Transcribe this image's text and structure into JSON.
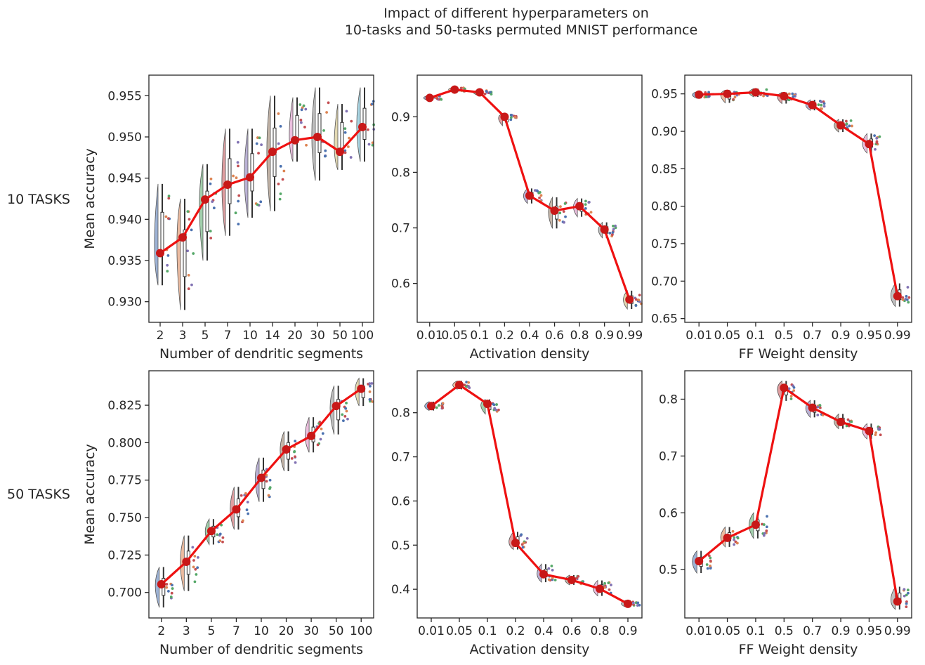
{
  "title_lines": [
    "Impact of different hyperparameters on",
    "10-tasks and 50-tasks permuted MNIST performance"
  ],
  "row_labels": [
    "10 TASKS",
    "50 TASKS"
  ],
  "colors": {
    "line": "#ee1111",
    "marker": "#c81818",
    "palette": [
      "#4c72b0",
      "#dd8452",
      "#55a868",
      "#c44e52",
      "#8172b3",
      "#937860",
      "#da8bc3",
      "#8c8c8c",
      "#ccb974",
      "#64b5cd"
    ]
  },
  "chart_data": [
    {
      "type": "line",
      "row_label": "10 TASKS",
      "xlabel": "Number of dendritic segments",
      "ylabel": "Mean accuracy",
      "categories": [
        "2",
        "3",
        "5",
        "7",
        "10",
        "14",
        "20",
        "30",
        "50",
        "100"
      ],
      "values": [
        0.9359,
        0.9378,
        0.9424,
        0.9442,
        0.9451,
        0.9482,
        0.9496,
        0.95,
        0.9482,
        0.9512
      ],
      "spread_min": [
        0.932,
        0.929,
        0.935,
        0.938,
        0.9402,
        0.941,
        0.947,
        0.9447,
        0.946,
        0.947
      ],
      "spread_max": [
        0.9443,
        0.9425,
        0.9467,
        0.951,
        0.951,
        0.955,
        0.9548,
        0.956,
        0.954,
        0.956
      ],
      "ylim": [
        0.9275,
        0.9575
      ],
      "yticks": [
        0.93,
        0.935,
        0.94,
        0.945,
        0.95,
        0.955
      ],
      "ytick_labels": [
        "0.930",
        "0.935",
        "0.940",
        "0.945",
        "0.950",
        "0.955"
      ]
    },
    {
      "type": "line",
      "row_label": "10 TASKS",
      "xlabel": "Activation density",
      "ylabel": "",
      "categories": [
        "0.01",
        "0.05",
        "0.1",
        "0.2",
        "0.4",
        "0.6",
        "0.8",
        "0.9",
        "0.99"
      ],
      "values": [
        0.934,
        0.949,
        0.944,
        0.9,
        0.758,
        0.731,
        0.739,
        0.697,
        0.571
      ],
      "spread_min": [
        0.93,
        0.945,
        0.939,
        0.884,
        0.744,
        0.699,
        0.72,
        0.682,
        0.554
      ],
      "spread_max": [
        0.938,
        0.953,
        0.948,
        0.906,
        0.771,
        0.755,
        0.753,
        0.71,
        0.587
      ],
      "ylim": [
        0.53,
        0.975
      ],
      "yticks": [
        0.6,
        0.7,
        0.8,
        0.9
      ],
      "ytick_labels": [
        "0.6",
        "0.7",
        "0.8",
        "0.9"
      ]
    },
    {
      "type": "line",
      "row_label": "10 TASKS",
      "xlabel": "FF Weight density",
      "ylabel": "",
      "categories": [
        "0.01",
        "0.05",
        "0.1",
        "0.5",
        "0.7",
        "0.9",
        "0.95",
        "0.99"
      ],
      "values": [
        0.949,
        0.95,
        0.952,
        0.947,
        0.935,
        0.908,
        0.883,
        0.68
      ],
      "spread_min": [
        0.944,
        0.938,
        0.946,
        0.937,
        0.928,
        0.899,
        0.871,
        0.666
      ],
      "spread_max": [
        0.953,
        0.955,
        0.957,
        0.952,
        0.942,
        0.916,
        0.897,
        0.697
      ],
      "ylim": [
        0.645,
        0.975
      ],
      "yticks": [
        0.65,
        0.7,
        0.75,
        0.8,
        0.85,
        0.9,
        0.95
      ],
      "ytick_labels": [
        "0.65",
        "0.70",
        "0.75",
        "0.80",
        "0.85",
        "0.90",
        "0.95"
      ]
    },
    {
      "type": "line",
      "row_label": "50 TASKS",
      "xlabel": "Number of dendritic segments",
      "ylabel": "Mean accuracy",
      "categories": [
        "2",
        "3",
        "5",
        "7",
        "10",
        "20",
        "30",
        "50",
        "100"
      ],
      "values": [
        0.7055,
        0.7205,
        0.741,
        0.7555,
        0.7765,
        0.7955,
        0.8045,
        0.8245,
        0.836
      ],
      "spread_min": [
        0.69,
        0.701,
        0.732,
        0.742,
        0.7605,
        0.781,
        0.7935,
        0.8055,
        0.8245
      ],
      "spread_max": [
        0.717,
        0.738,
        0.749,
        0.7705,
        0.79,
        0.8075,
        0.817,
        0.838,
        0.843
      ],
      "ylim": [
        0.683,
        0.848
      ],
      "yticks": [
        0.7,
        0.725,
        0.75,
        0.775,
        0.8,
        0.825
      ],
      "ytick_labels": [
        "0.700",
        "0.725",
        "0.750",
        "0.775",
        "0.800",
        "0.825"
      ]
    },
    {
      "type": "line",
      "row_label": "50 TASKS",
      "xlabel": "Activation density",
      "ylabel": "",
      "categories": [
        "0.01",
        "0.05",
        "0.1",
        "0.2",
        "0.4",
        "0.6",
        "0.8",
        "0.9"
      ],
      "values": [
        0.815,
        0.863,
        0.82,
        0.505,
        0.434,
        0.421,
        0.401,
        0.367
      ],
      "spread_min": [
        0.805,
        0.853,
        0.797,
        0.49,
        0.416,
        0.41,
        0.385,
        0.36
      ],
      "spread_max": [
        0.825,
        0.872,
        0.83,
        0.53,
        0.457,
        0.432,
        0.42,
        0.375
      ],
      "ylim": [
        0.335,
        0.895
      ],
      "yticks": [
        0.4,
        0.5,
        0.6,
        0.7,
        0.8
      ],
      "ytick_labels": [
        "0.4",
        "0.5",
        "0.6",
        "0.7",
        "0.8"
      ]
    },
    {
      "type": "line",
      "row_label": "50 TASKS",
      "xlabel": "FF Weight density",
      "ylabel": "",
      "categories": [
        "0.01",
        "0.05",
        "0.1",
        "0.5",
        "0.7",
        "0.9",
        "0.95",
        "0.99"
      ],
      "values": [
        0.515,
        0.556,
        0.579,
        0.82,
        0.785,
        0.76,
        0.744,
        0.444
      ],
      "spread_min": [
        0.494,
        0.54,
        0.555,
        0.797,
        0.768,
        0.748,
        0.73,
        0.43
      ],
      "spread_max": [
        0.533,
        0.575,
        0.6,
        0.832,
        0.798,
        0.774,
        0.757,
        0.47
      ],
      "ylim": [
        0.415,
        0.85
      ],
      "yticks": [
        0.5,
        0.6,
        0.7,
        0.8
      ],
      "ytick_labels": [
        "0.5",
        "0.6",
        "0.7",
        "0.8"
      ]
    }
  ]
}
